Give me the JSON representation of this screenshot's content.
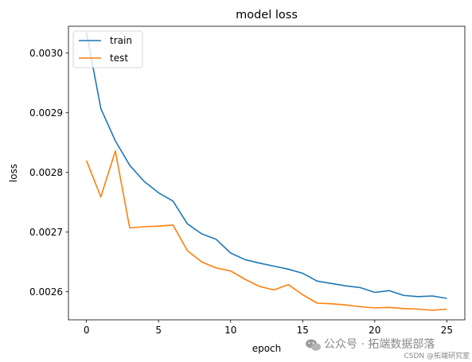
{
  "chart_data": {
    "type": "line",
    "title": "model loss",
    "xlabel": "epoch",
    "ylabel": "loss",
    "xlim": [
      -1.25,
      26.25
    ],
    "ylim": [
      0.002553,
      0.003045
    ],
    "xticks": [
      0,
      5,
      10,
      15,
      20,
      25
    ],
    "xtick_labels": [
      "0",
      "5",
      "10",
      "15",
      "20",
      "25"
    ],
    "yticks": [
      0.0026,
      0.0027,
      0.0028,
      0.0029,
      0.003
    ],
    "ytick_labels": [
      "0.0026",
      "0.0027",
      "0.0028",
      "0.0029",
      "0.0030"
    ],
    "grid": false,
    "legend_position": "upper-left",
    "x": [
      0,
      1,
      2,
      3,
      4,
      5,
      6,
      7,
      8,
      9,
      10,
      11,
      12,
      13,
      14,
      15,
      16,
      17,
      18,
      19,
      20,
      21,
      22,
      23,
      24,
      25
    ],
    "series": [
      {
        "name": "train",
        "color": "#1f77b4",
        "values": [
          0.003035,
          0.002907,
          0.002853,
          0.002812,
          0.002785,
          0.002766,
          0.002752,
          0.002714,
          0.002697,
          0.002688,
          0.002665,
          0.002654,
          0.002648,
          0.002643,
          0.002638,
          0.002631,
          0.002618,
          0.002614,
          0.00261,
          0.002607,
          0.002599,
          0.002602,
          0.002594,
          0.002592,
          0.002593,
          0.002589
        ]
      },
      {
        "name": "test",
        "color": "#ff7f0e",
        "values": [
          0.00282,
          0.002759,
          0.002836,
          0.002707,
          0.002709,
          0.00271,
          0.002712,
          0.002669,
          0.00265,
          0.00264,
          0.002635,
          0.002621,
          0.002609,
          0.002603,
          0.002612,
          0.002595,
          0.002581,
          0.00258,
          0.002578,
          0.002575,
          0.002573,
          0.002574,
          0.002572,
          0.002571,
          0.002569,
          0.002571
        ]
      }
    ]
  },
  "watermark": {
    "line1": "公众号 · 拓端数据部落",
    "line2": "CSDN @拓端研究室"
  }
}
